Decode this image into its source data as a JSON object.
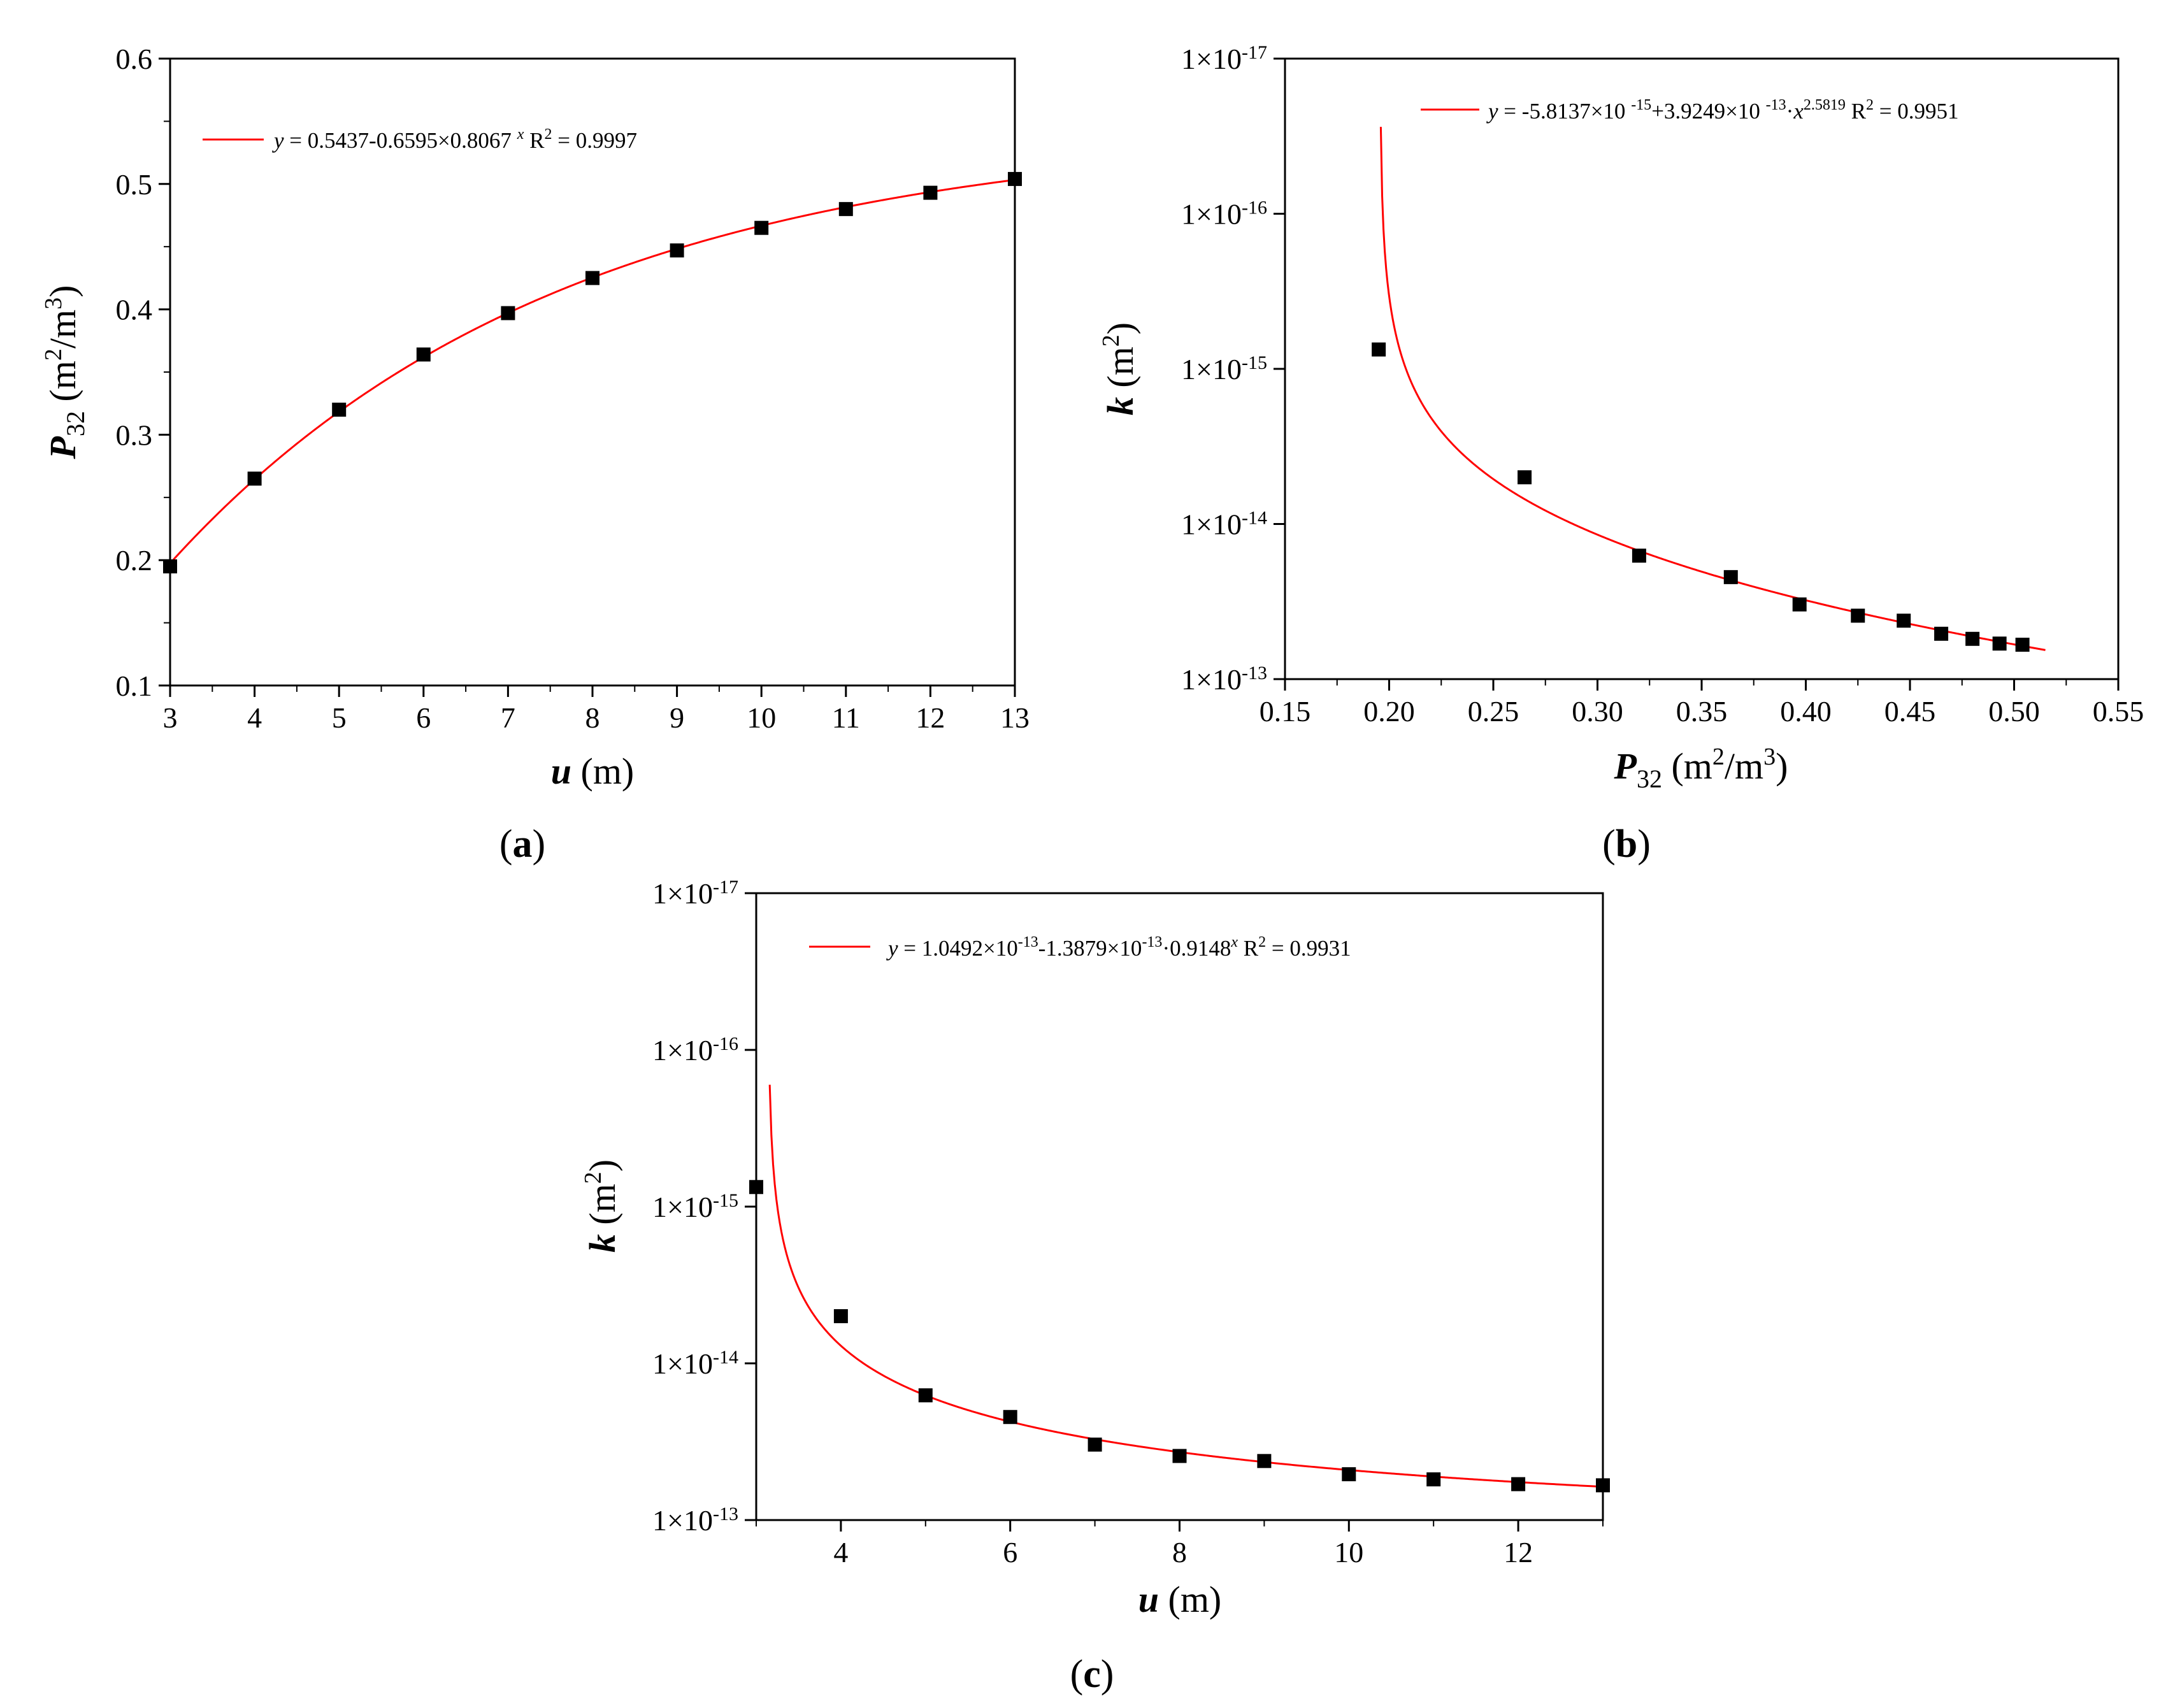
{
  "chart_data": [
    {
      "panel_label": "(a)",
      "type": "scatter",
      "xlabel": "u (m)",
      "ylabel": "P32 (m2/m3)",
      "xlim": [
        3,
        13
      ],
      "ylim": [
        0.1,
        0.6
      ],
      "x_ticks": [
        3,
        4,
        5,
        6,
        7,
        8,
        9,
        10,
        11,
        12,
        13
      ],
      "x_tick_labels": [
        "3",
        "4",
        "5",
        "6",
        "7",
        "8",
        "9",
        "10",
        "11",
        "12",
        "13"
      ],
      "y_ticks": [
        0.1,
        0.2,
        0.3,
        0.4,
        0.5,
        0.6
      ],
      "y_tick_labels": [
        "0.1",
        "0.2",
        "0.3",
        "0.4",
        "0.5",
        "0.6"
      ],
      "grid": false,
      "legend_position": "top-left",
      "legend_text": "y = 0.5437-0.6595×0.8067 x R2 = 0.9997",
      "points": {
        "x": [
          3,
          4,
          5,
          6,
          7,
          8,
          9,
          10,
          11,
          12,
          13
        ],
        "y": [
          0.195,
          0.265,
          0.32,
          0.364,
          0.397,
          0.425,
          0.447,
          0.465,
          0.48,
          0.493,
          0.504
        ]
      },
      "fit": {
        "model": "exponential",
        "a": 0.5437,
        "b": -0.6595,
        "c": 0.8067,
        "r2": 0.9997,
        "x_range": [
          3,
          13
        ],
        "color": "#ff0000"
      },
      "marker_color": "#000000"
    },
    {
      "panel_label": "(b)",
      "type": "scatter",
      "xlabel": "P32 (m2/m3)",
      "ylabel": "k (m2)",
      "xlim": [
        0.15,
        0.55
      ],
      "y_scale": "log",
      "y_axis_inverted": true,
      "ylim": [
        1e-17,
        1e-13
      ],
      "x_ticks": [
        0.15,
        0.2,
        0.25,
        0.3,
        0.35,
        0.4,
        0.45,
        0.5,
        0.55
      ],
      "x_tick_labels": [
        "0.15",
        "0.20",
        "0.25",
        "0.30",
        "0.35",
        "0.40",
        "0.45",
        "0.50",
        "0.55"
      ],
      "y_ticks": [
        1e-17,
        1e-16,
        1e-15,
        1e-14,
        1e-13
      ],
      "y_tick_labels": [
        "1×10-17",
        "1×10-16",
        "1×10-15",
        "1×10-14",
        "1×10-13"
      ],
      "grid": false,
      "legend_position": "top-right",
      "legend_text": "y = -5.8137×10 -15+3.9249×10 -13·x2.5819 R2 = 0.9951",
      "points": {
        "x": [
          0.195,
          0.265,
          0.32,
          0.364,
          0.397,
          0.425,
          0.447,
          0.465,
          0.48,
          0.493,
          0.504
        ],
        "y": [
          7.5e-16,
          5e-15,
          1.6e-14,
          2.2e-14,
          3.3e-14,
          3.9e-14,
          4.2e-14,
          5.1e-14,
          5.5e-14,
          5.9e-14,
          6e-14
        ]
      },
      "fit": {
        "model": "power",
        "a": -5.8137e-15,
        "b": 3.9249e-13,
        "c": 2.5819,
        "r2": 0.9951,
        "x_range": [
          0.196,
          0.515
        ],
        "color": "#ff0000"
      },
      "marker_color": "#000000"
    },
    {
      "panel_label": "(c)",
      "type": "scatter",
      "xlabel": "u (m)",
      "ylabel": "k (m2)",
      "xlim": [
        3,
        13
      ],
      "y_scale": "log",
      "y_axis_inverted": true,
      "ylim": [
        1e-17,
        1e-13
      ],
      "x_ticks": [
        4,
        6,
        8,
        10,
        12
      ],
      "x_tick_labels": [
        "4",
        "6",
        "8",
        "10",
        "12"
      ],
      "y_ticks": [
        1e-17,
        1e-16,
        1e-15,
        1e-14,
        1e-13
      ],
      "y_tick_labels": [
        "1×10-17",
        "1×10-16",
        "1×10-15",
        "1×10-14",
        "1×10-13"
      ],
      "grid": false,
      "legend_position": "top-left",
      "legend_text": "y = 1.0492×10-13-1.3879×10-13·0.9148x R2 = 0.9931",
      "points": {
        "x": [
          3,
          4,
          5,
          6,
          7,
          8,
          9,
          10,
          11,
          12,
          13
        ],
        "y": [
          7.5e-16,
          5e-15,
          1.6e-14,
          2.2e-14,
          3.3e-14,
          3.9e-14,
          4.2e-14,
          5.1e-14,
          5.5e-14,
          5.9e-14,
          6e-14
        ]
      },
      "fit": {
        "model": "exponential",
        "a": 1.0492e-13,
        "b": -1.3879e-13,
        "c": 0.9148,
        "r2": 0.9931,
        "x_range": [
          3.12,
          13
        ],
        "color": "#ff0000"
      },
      "marker_color": "#000000"
    }
  ]
}
